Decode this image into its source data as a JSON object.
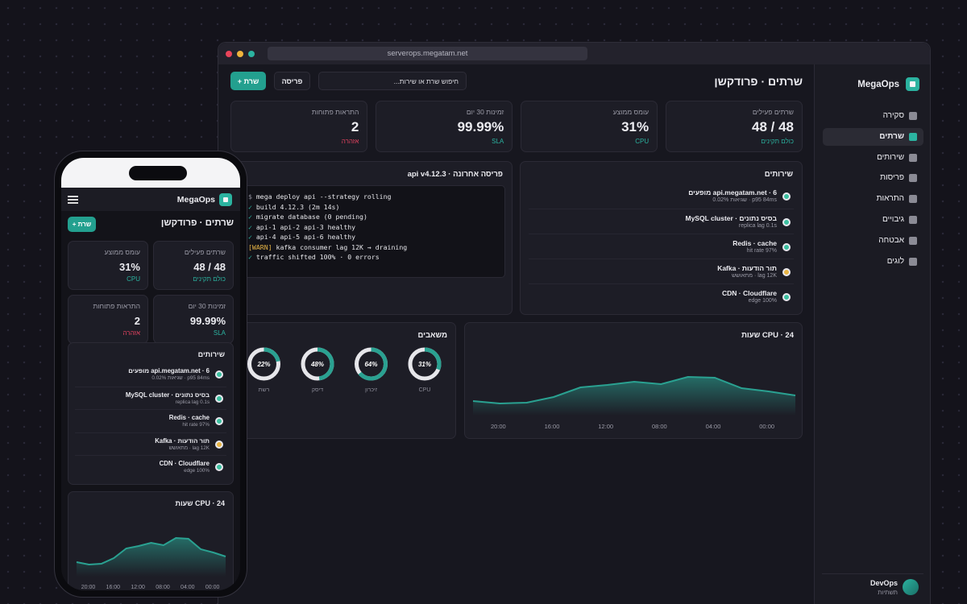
{
  "browser": {
    "url": "serverops.megatam.net"
  },
  "app": {
    "brand": "MegaOps",
    "page_title": "שרתים · פרודקשן",
    "search_placeholder": "חיפוש שרת או שירות...",
    "deploy_button": "פריסה",
    "add_button": "+ שרת"
  },
  "nav": [
    {
      "label": "סקירה",
      "active": false
    },
    {
      "label": "שרתים",
      "active": true
    },
    {
      "label": "שירותים",
      "active": false
    },
    {
      "label": "פריסות",
      "active": false
    },
    {
      "label": "התראות",
      "active": false
    },
    {
      "label": "גיבויים",
      "active": false
    },
    {
      "label": "אבטחה",
      "active": false
    },
    {
      "label": "לוגים",
      "active": false
    }
  ],
  "user": {
    "name": "DevOps",
    "role": "תשתיות"
  },
  "stats": [
    {
      "label": "שרתים פעילים",
      "value": "48 / 48",
      "note": "כולם תקינים",
      "note_color": "#2bb3a0"
    },
    {
      "label": "עומס ממוצע",
      "value": "31%",
      "note": "CPU",
      "note_color": "#2bb3a0"
    },
    {
      "label": "זמינות 30 יום",
      "value": "99.99%",
      "note": "SLA",
      "note_color": "#2bb3a0"
    },
    {
      "label": "התראות פתוחות",
      "value": "2",
      "note": "אזהרה",
      "note_color": "#e0425f"
    }
  ],
  "deploy": {
    "title": "פריסה אחרונה · api v4.12.3",
    "log": [
      {
        "prefix": "$",
        "prefix_color": "#8a8a96",
        "text": "mega deploy api --strategy rolling"
      },
      {
        "prefix": "✓",
        "prefix_color": "#2bb3a0",
        "text": "build 4.12.3 (2m 14s)"
      },
      {
        "prefix": "✓",
        "prefix_color": "#2bb3a0",
        "text": "migrate database (0 pending)"
      },
      {
        "prefix": "✓",
        "prefix_color": "#2bb3a0",
        "text": "api-1 api-2 api-3 healthy"
      },
      {
        "prefix": "✓",
        "prefix_color": "#2bb3a0",
        "text": "api-4 api-5 api-6 healthy"
      },
      {
        "prefix": "[WARN]",
        "prefix_color": "#e8b545",
        "text": "kafka consumer lag 12K → draining"
      },
      {
        "prefix": "✓",
        "prefix_color": "#2bb3a0",
        "text": "traffic shifted 100% · 0 errors"
      }
    ]
  },
  "services": {
    "title": "שירותים",
    "items": [
      {
        "name": "api.megatam.net · 6 מופעים",
        "detail": "p95 84ms · שגיאות 0.02%",
        "status_color": "#3cc0a0"
      },
      {
        "name": "בסיס נתונים · MySQL cluster",
        "detail": "replica lag 0.1s",
        "status_color": "#3cc0a0"
      },
      {
        "name": "Redis · cache",
        "detail": "hit rate 97%",
        "status_color": "#3cc0a0"
      },
      {
        "name": "תור הודעות · Kafka",
        "detail": "lag 12K · מתאושש",
        "status_color": "#e8b545"
      },
      {
        "name": "CDN · Cloudflare",
        "detail": "edge 100%",
        "status_color": "#3cc0a0"
      }
    ]
  },
  "resources": {
    "title": "משאבים",
    "color": "#2aa191",
    "gauges": [
      {
        "label": "CPU",
        "value": 31,
        "value_label": "31%"
      },
      {
        "label": "זיכרון",
        "value": 64,
        "value_label": "64%"
      },
      {
        "label": "דיסק",
        "value": 48,
        "value_label": "48%"
      },
      {
        "label": "רשת",
        "value": 22,
        "value_label": "22%"
      }
    ]
  },
  "cpu_chart": {
    "type": "area",
    "title": "CPU · 24 שעות",
    "color": "#2aa191",
    "values": [
      18,
      15,
      16,
      23,
      35,
      38,
      42,
      39,
      48,
      47,
      34,
      30,
      25
    ],
    "ylim": [
      0,
      60
    ],
    "x_labels": [
      "20:00",
      "16:00",
      "12:00",
      "08:00",
      "04:00",
      "00:00"
    ]
  }
}
